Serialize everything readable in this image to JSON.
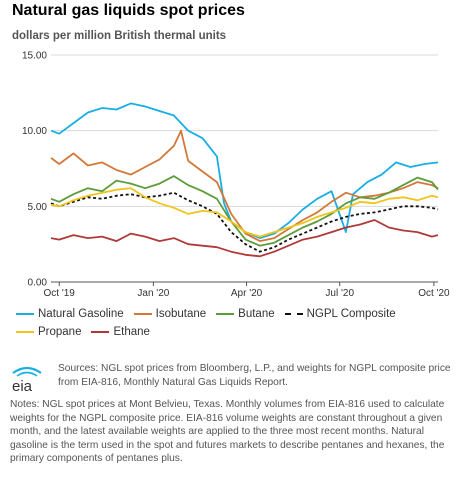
{
  "header": {
    "title": "Natural gas liquids spot prices",
    "subtitle": "dollars per million British thermal units"
  },
  "chart_data": {
    "type": "line",
    "title": "Natural gas liquids spot prices",
    "ylabel": "dollars per million British thermal units",
    "xlabel": "",
    "ylim": [
      0,
      15
    ],
    "yticks": [
      "0.00",
      "5.00",
      "10.00",
      "15.00"
    ],
    "xlim": [
      "2019-09-23",
      "2020-10-05"
    ],
    "xticks": [
      {
        "date": "2019-10-01",
        "label": "Oct '19"
      },
      {
        "date": "2020-01-01",
        "label": "Jan '20"
      },
      {
        "date": "2020-04-01",
        "label": "Apr '20"
      },
      {
        "date": "2020-07-01",
        "label": "Jul '20"
      },
      {
        "date": "2020-10-01",
        "label": "Oct '20"
      }
    ],
    "grid": true,
    "legend_position": "bottom",
    "series": [
      {
        "name": "Natural Gasoline",
        "color": "#1aaee5",
        "dash": "solid",
        "points": [
          [
            "2019-09-23",
            10.0
          ],
          [
            "2019-10-01",
            9.8
          ],
          [
            "2019-10-15",
            10.5
          ],
          [
            "2019-10-29",
            11.2
          ],
          [
            "2019-11-12",
            11.5
          ],
          [
            "2019-11-26",
            11.4
          ],
          [
            "2019-12-10",
            11.8
          ],
          [
            "2019-12-24",
            11.6
          ],
          [
            "2020-01-07",
            11.3
          ],
          [
            "2020-01-21",
            11.0
          ],
          [
            "2020-02-04",
            10.0
          ],
          [
            "2020-02-18",
            9.5
          ],
          [
            "2020-03-03",
            8.3
          ],
          [
            "2020-03-10",
            5.2
          ],
          [
            "2020-03-17",
            4.0
          ],
          [
            "2020-03-31",
            3.3
          ],
          [
            "2020-04-14",
            2.9
          ],
          [
            "2020-04-28",
            3.2
          ],
          [
            "2020-05-12",
            3.9
          ],
          [
            "2020-05-26",
            4.8
          ],
          [
            "2020-06-09",
            5.5
          ],
          [
            "2020-06-23",
            6.0
          ],
          [
            "2020-07-07",
            3.3
          ],
          [
            "2020-07-14",
            5.8
          ],
          [
            "2020-07-28",
            6.6
          ],
          [
            "2020-08-11",
            7.1
          ],
          [
            "2020-08-25",
            7.9
          ],
          [
            "2020-09-08",
            7.6
          ],
          [
            "2020-09-22",
            7.8
          ],
          [
            "2020-10-05",
            7.9
          ]
        ]
      },
      {
        "name": "Isobutane",
        "color": "#d2783a",
        "dash": "solid",
        "points": [
          [
            "2019-09-23",
            8.2
          ],
          [
            "2019-10-01",
            7.8
          ],
          [
            "2019-10-15",
            8.5
          ],
          [
            "2019-10-29",
            7.7
          ],
          [
            "2019-11-12",
            7.9
          ],
          [
            "2019-11-26",
            7.4
          ],
          [
            "2019-12-10",
            7.1
          ],
          [
            "2019-12-24",
            7.6
          ],
          [
            "2020-01-07",
            8.1
          ],
          [
            "2020-01-21",
            9.0
          ],
          [
            "2020-01-28",
            10.0
          ],
          [
            "2020-02-04",
            8.0
          ],
          [
            "2020-02-18",
            7.3
          ],
          [
            "2020-03-03",
            6.6
          ],
          [
            "2020-03-17",
            4.5
          ],
          [
            "2020-03-31",
            3.2
          ],
          [
            "2020-04-14",
            2.7
          ],
          [
            "2020-04-28",
            2.9
          ],
          [
            "2020-05-12",
            3.5
          ],
          [
            "2020-05-26",
            4.1
          ],
          [
            "2020-06-09",
            4.6
          ],
          [
            "2020-06-23",
            5.3
          ],
          [
            "2020-07-07",
            5.9
          ],
          [
            "2020-07-21",
            5.6
          ],
          [
            "2020-08-04",
            5.7
          ],
          [
            "2020-08-18",
            5.9
          ],
          [
            "2020-09-01",
            6.2
          ],
          [
            "2020-09-15",
            6.6
          ],
          [
            "2020-09-29",
            6.4
          ],
          [
            "2020-10-05",
            6.2
          ]
        ]
      },
      {
        "name": "Butane",
        "color": "#5d9c3a",
        "dash": "solid",
        "points": [
          [
            "2019-09-23",
            5.5
          ],
          [
            "2019-10-01",
            5.3
          ],
          [
            "2019-10-15",
            5.8
          ],
          [
            "2019-10-29",
            6.2
          ],
          [
            "2019-11-12",
            6.0
          ],
          [
            "2019-11-26",
            6.7
          ],
          [
            "2019-12-10",
            6.5
          ],
          [
            "2019-12-24",
            6.2
          ],
          [
            "2020-01-07",
            6.5
          ],
          [
            "2020-01-21",
            7.0
          ],
          [
            "2020-02-04",
            6.4
          ],
          [
            "2020-02-18",
            6.0
          ],
          [
            "2020-03-03",
            5.5
          ],
          [
            "2020-03-17",
            4.0
          ],
          [
            "2020-03-31",
            2.8
          ],
          [
            "2020-04-14",
            2.4
          ],
          [
            "2020-04-28",
            2.6
          ],
          [
            "2020-05-12",
            3.1
          ],
          [
            "2020-05-26",
            3.6
          ],
          [
            "2020-06-09",
            4.0
          ],
          [
            "2020-06-23",
            4.5
          ],
          [
            "2020-07-07",
            5.2
          ],
          [
            "2020-07-21",
            5.6
          ],
          [
            "2020-08-04",
            5.5
          ],
          [
            "2020-08-18",
            5.9
          ],
          [
            "2020-09-01",
            6.4
          ],
          [
            "2020-09-15",
            6.9
          ],
          [
            "2020-09-29",
            6.6
          ],
          [
            "2020-10-05",
            6.1
          ]
        ]
      },
      {
        "name": "NGPL Composite",
        "color": "#111111",
        "dash": "dashed",
        "points": [
          [
            "2019-09-23",
            5.2
          ],
          [
            "2019-10-01",
            5.0
          ],
          [
            "2019-10-15",
            5.3
          ],
          [
            "2019-10-29",
            5.6
          ],
          [
            "2019-11-12",
            5.5
          ],
          [
            "2019-11-26",
            5.7
          ],
          [
            "2019-12-10",
            5.8
          ],
          [
            "2019-12-24",
            5.6
          ],
          [
            "2020-01-07",
            5.7
          ],
          [
            "2020-01-21",
            5.9
          ],
          [
            "2020-02-04",
            5.4
          ],
          [
            "2020-02-18",
            5.0
          ],
          [
            "2020-03-03",
            4.5
          ],
          [
            "2020-03-17",
            3.3
          ],
          [
            "2020-03-31",
            2.5
          ],
          [
            "2020-04-14",
            2.0
          ],
          [
            "2020-04-28",
            2.3
          ],
          [
            "2020-05-12",
            2.8
          ],
          [
            "2020-05-26",
            3.2
          ],
          [
            "2020-06-09",
            3.6
          ],
          [
            "2020-06-23",
            4.0
          ],
          [
            "2020-07-07",
            4.3
          ],
          [
            "2020-07-21",
            4.5
          ],
          [
            "2020-08-04",
            4.6
          ],
          [
            "2020-08-18",
            4.8
          ],
          [
            "2020-09-01",
            5.0
          ],
          [
            "2020-09-15",
            5.0
          ],
          [
            "2020-09-29",
            4.9
          ],
          [
            "2020-10-05",
            4.8
          ]
        ]
      },
      {
        "name": "Propane",
        "color": "#f0c419",
        "dash": "solid",
        "points": [
          [
            "2019-09-23",
            5.1
          ],
          [
            "2019-10-01",
            5.0
          ],
          [
            "2019-10-15",
            5.4
          ],
          [
            "2019-10-29",
            5.7
          ],
          [
            "2019-11-12",
            5.9
          ],
          [
            "2019-11-26",
            6.1
          ],
          [
            "2019-12-10",
            6.2
          ],
          [
            "2019-12-24",
            5.6
          ],
          [
            "2020-01-07",
            5.2
          ],
          [
            "2020-01-21",
            4.9
          ],
          [
            "2020-02-04",
            4.5
          ],
          [
            "2020-02-18",
            4.7
          ],
          [
            "2020-03-03",
            4.6
          ],
          [
            "2020-03-17",
            4.0
          ],
          [
            "2020-03-31",
            3.3
          ],
          [
            "2020-04-14",
            3.0
          ],
          [
            "2020-04-28",
            3.3
          ],
          [
            "2020-05-12",
            3.6
          ],
          [
            "2020-05-26",
            3.9
          ],
          [
            "2020-06-09",
            4.3
          ],
          [
            "2020-06-23",
            4.6
          ],
          [
            "2020-07-07",
            4.9
          ],
          [
            "2020-07-21",
            5.3
          ],
          [
            "2020-08-04",
            5.2
          ],
          [
            "2020-08-18",
            5.5
          ],
          [
            "2020-09-01",
            5.6
          ],
          [
            "2020-09-15",
            5.4
          ],
          [
            "2020-09-29",
            5.7
          ],
          [
            "2020-10-05",
            5.6
          ]
        ]
      },
      {
        "name": "Ethane",
        "color": "#b03a3a",
        "dash": "solid",
        "points": [
          [
            "2019-09-23",
            2.9
          ],
          [
            "2019-10-01",
            2.8
          ],
          [
            "2019-10-15",
            3.1
          ],
          [
            "2019-10-29",
            2.9
          ],
          [
            "2019-11-12",
            3.0
          ],
          [
            "2019-11-26",
            2.7
          ],
          [
            "2019-12-10",
            3.2
          ],
          [
            "2019-12-24",
            3.0
          ],
          [
            "2020-01-07",
            2.7
          ],
          [
            "2020-01-21",
            2.9
          ],
          [
            "2020-02-04",
            2.5
          ],
          [
            "2020-02-18",
            2.4
          ],
          [
            "2020-03-03",
            2.3
          ],
          [
            "2020-03-17",
            2.0
          ],
          [
            "2020-03-31",
            1.8
          ],
          [
            "2020-04-14",
            1.7
          ],
          [
            "2020-04-28",
            2.0
          ],
          [
            "2020-05-12",
            2.4
          ],
          [
            "2020-05-26",
            2.8
          ],
          [
            "2020-06-09",
            3.0
          ],
          [
            "2020-06-23",
            3.3
          ],
          [
            "2020-07-07",
            3.6
          ],
          [
            "2020-07-21",
            3.8
          ],
          [
            "2020-08-04",
            4.1
          ],
          [
            "2020-08-18",
            3.6
          ],
          [
            "2020-09-01",
            3.4
          ],
          [
            "2020-09-15",
            3.3
          ],
          [
            "2020-09-29",
            3.0
          ],
          [
            "2020-10-05",
            3.1
          ]
        ]
      }
    ]
  },
  "legend": {
    "rows": [
      [
        {
          "name": "Natural Gasoline",
          "color": "#1aaee5",
          "dash": "solid"
        },
        {
          "name": "Isobutane",
          "color": "#d2783a",
          "dash": "solid"
        },
        {
          "name": "Butane",
          "color": "#5d9c3a",
          "dash": "solid"
        },
        {
          "name": "NGPL Composite",
          "color": "#111111",
          "dash": "dashed"
        }
      ],
      [
        {
          "name": "Propane",
          "color": "#f0c419",
          "dash": "solid"
        },
        {
          "name": "Ethane",
          "color": "#b03a3a",
          "dash": "solid"
        }
      ]
    ]
  },
  "footer": {
    "logo_text": "eia",
    "sources": "Sources: NGL spot prices from Bloomberg, L.P., and weights for NGPL composite price from EIA-816, Monthly Natural Gas Liquids Report.",
    "notes": "Notes: NGL spot prices at Mont Belvieu, Texas. Monthly volumes from EIA-816 used to calculate weights for the NGPL composite price. EIA-816 volume weights are constant throughout a given month, and the latest available weights are applied to the three most recent months. Natural gasoline is the term used in the spot and futures markets to describe pentanes and hexanes, the primary components of pentanes plus."
  }
}
